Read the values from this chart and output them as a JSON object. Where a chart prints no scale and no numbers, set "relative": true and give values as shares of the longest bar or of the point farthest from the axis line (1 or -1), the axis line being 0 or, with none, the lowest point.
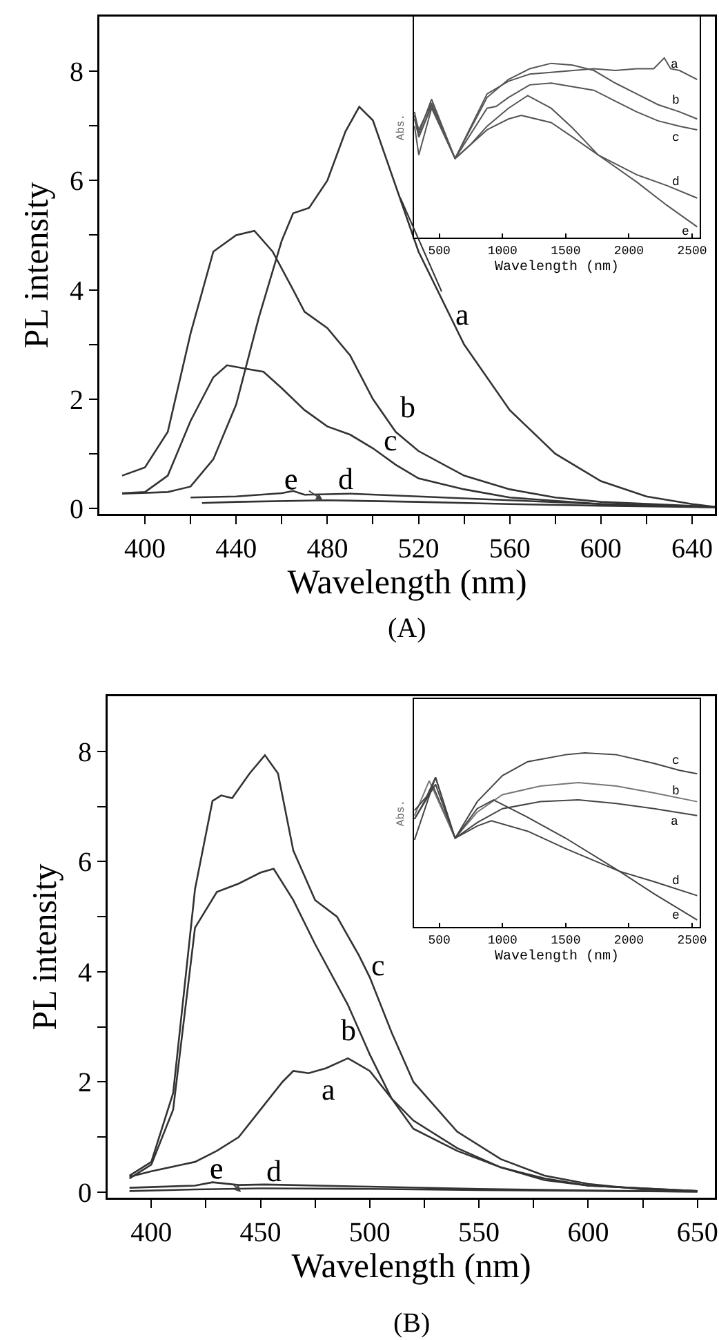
{
  "chart_data": [
    {
      "type": "line",
      "xlabel": "Wavelength (nm)",
      "ylabel": "PL intensity",
      "annotations": [
        "(A)"
      ],
      "xlim": [
        380,
        650
      ],
      "ylim": [
        -0.1,
        9
      ],
      "xticks": [
        400,
        {
          "value": 420,
          "label": null
        },
        440,
        {
          "value": 460,
          "label": null
        },
        480,
        {
          "value": 500,
          "label": null
        },
        520,
        {
          "value": 540,
          "label": null
        },
        560,
        {
          "value": 580,
          "label": null
        },
        600,
        {
          "value": 620,
          "label": null
        },
        640
      ],
      "yticks": [
        0,
        {
          "value": 1,
          "label": null
        },
        2,
        {
          "value": 3,
          "label": null
        },
        4,
        {
          "value": 5,
          "label": null
        },
        6,
        {
          "value": 7,
          "label": null
        },
        8
      ],
      "grid": false,
      "legend": false,
      "marker": "none",
      "line_style": "solid",
      "series": [
        {
          "name": "a",
          "color": "#333333",
          "x": [
            390,
            410,
            420,
            430,
            440,
            450,
            460,
            465,
            472,
            480,
            488,
            494,
            500,
            510,
            520,
            540,
            560,
            580,
            600,
            620,
            640,
            650
          ],
          "values": [
            0.27,
            0.3,
            0.4,
            0.9,
            1.9,
            3.5,
            4.9,
            5.4,
            5.5,
            6.0,
            6.9,
            7.35,
            7.1,
            5.9,
            4.7,
            3.0,
            1.8,
            1.0,
            0.5,
            0.22,
            0.08,
            0.03
          ]
        },
        {
          "name": "b",
          "color": "#333333",
          "x": [
            390,
            400,
            410,
            420,
            430,
            440,
            448,
            456,
            465,
            470,
            480,
            490,
            500,
            510,
            520,
            540,
            560,
            580,
            600,
            650
          ],
          "values": [
            0.6,
            0.75,
            1.4,
            3.2,
            4.7,
            5.0,
            5.08,
            4.7,
            4.0,
            3.6,
            3.3,
            2.8,
            2.0,
            1.4,
            1.05,
            0.6,
            0.35,
            0.2,
            0.12,
            0.03
          ]
        },
        {
          "name": "c",
          "color": "#333333",
          "x": [
            390,
            400,
            410,
            420,
            430,
            436,
            445,
            452,
            460,
            470,
            480,
            490,
            500,
            510,
            520,
            540,
            560,
            600,
            650
          ],
          "values": [
            0.28,
            0.3,
            0.6,
            1.6,
            2.4,
            2.62,
            2.55,
            2.5,
            2.2,
            1.8,
            1.5,
            1.35,
            1.1,
            0.8,
            0.55,
            0.35,
            0.2,
            0.08,
            0.02
          ]
        },
        {
          "name": "d",
          "color": "#333333",
          "x": [
            420,
            440,
            460,
            465,
            470,
            490,
            520,
            560,
            600,
            650
          ],
          "values": [
            0.2,
            0.22,
            0.28,
            0.32,
            0.25,
            0.27,
            0.22,
            0.15,
            0.08,
            0.03
          ]
        },
        {
          "name": "e",
          "color": "#333333",
          "x": [
            425,
            440,
            480,
            520,
            560,
            600,
            650
          ],
          "values": [
            0.1,
            0.12,
            0.15,
            0.12,
            0.08,
            0.05,
            0.02
          ]
        }
      ]
    },
    {
      "type": "line",
      "xlabel": "Wavelength (nm)",
      "ylabel": "Abs.",
      "relative": true,
      "xlim": [
        300,
        2560
      ],
      "xticks": [
        500,
        1000,
        1500,
        2000,
        2500
      ],
      "grid": false,
      "legend": false,
      "marker": "none",
      "line_style": "solid",
      "series": [
        {
          "name": "a",
          "color": "#555555",
          "x": [
            304,
            338,
            439,
            625,
            878,
            1047,
            1216,
            1385,
            1723,
            1892,
            2061,
            2196,
            2280,
            2330,
            2400,
            2540
          ],
          "values": [
            0.7,
            0.58,
            0.77,
            0.44,
            0.8,
            0.87,
            0.91,
            0.92,
            0.94,
            0.93,
            0.94,
            0.94,
            1.0,
            0.94,
            0.93,
            0.88
          ]
        },
        {
          "name": "b",
          "color": "#555555",
          "x": [
            304,
            338,
            439,
            625,
            878,
            1047,
            1216,
            1385,
            1554,
            1723,
            1892,
            2061,
            2230,
            2400,
            2540
          ],
          "values": [
            0.68,
            0.6,
            0.75,
            0.44,
            0.78,
            0.88,
            0.94,
            0.97,
            0.96,
            0.93,
            0.86,
            0.8,
            0.74,
            0.7,
            0.66
          ]
        },
        {
          "name": "c",
          "color": "#555555",
          "x": [
            304,
            338,
            439,
            625,
            878,
            950,
            1047,
            1216,
            1385,
            1554,
            1723,
            1892,
            2061,
            2230,
            2400,
            2540
          ],
          "values": [
            0.66,
            0.56,
            0.74,
            0.44,
            0.72,
            0.73,
            0.78,
            0.85,
            0.86,
            0.84,
            0.82,
            0.76,
            0.7,
            0.65,
            0.62,
            0.6
          ]
        },
        {
          "name": "d",
          "color": "#555555",
          "x": [
            304,
            338,
            439,
            625,
            878,
            1047,
            1149,
            1385,
            1554,
            1757,
            2061,
            2300,
            2540
          ],
          "values": [
            0.62,
            0.46,
            0.72,
            0.44,
            0.6,
            0.66,
            0.68,
            0.64,
            0.56,
            0.46,
            0.35,
            0.29,
            0.22
          ]
        },
        {
          "name": "e",
          "color": "#555555",
          "x": [
            304,
            338,
            439,
            625,
            750,
            878,
            1047,
            1199,
            1385,
            1554,
            1757,
            2061,
            2300,
            2540
          ],
          "values": [
            0.68,
            0.56,
            0.73,
            0.44,
            0.52,
            0.62,
            0.72,
            0.79,
            0.72,
            0.61,
            0.46,
            0.31,
            0.18,
            0.06
          ]
        }
      ]
    },
    {
      "type": "line",
      "xlabel": "Wavelength (nm)",
      "ylabel": "PL intensity",
      "annotations": [
        "(B)"
      ],
      "xlim": [
        380,
        658
      ],
      "ylim": [
        -0.1,
        9
      ],
      "xticks": [
        400,
        {
          "value": 425,
          "label": null
        },
        450,
        {
          "value": 475,
          "label": null
        },
        500,
        {
          "value": 525,
          "label": null
        },
        550,
        {
          "value": 575,
          "label": null
        },
        600,
        {
          "value": 625,
          "label": null
        },
        650
      ],
      "yticks": [
        0,
        {
          "value": 1,
          "label": null
        },
        2,
        {
          "value": 3,
          "label": null
        },
        4,
        {
          "value": 5,
          "label": null
        },
        6,
        {
          "value": 7,
          "label": null
        },
        8
      ],
      "grid": false,
      "legend": false,
      "marker": "none",
      "line_style": "solid",
      "series": [
        {
          "name": "a",
          "color": "#333333",
          "x": [
            390,
            400,
            420,
            430,
            440,
            450,
            460,
            465,
            472,
            480,
            490,
            500,
            510,
            520,
            540,
            560,
            580,
            600,
            650
          ],
          "values": [
            0.28,
            0.38,
            0.55,
            0.75,
            1.0,
            1.5,
            2.0,
            2.2,
            2.16,
            2.25,
            2.43,
            2.2,
            1.7,
            1.3,
            0.8,
            0.45,
            0.22,
            0.12,
            0.02
          ]
        },
        {
          "name": "b",
          "color": "#333333",
          "x": [
            390,
            400,
            410,
            420,
            430,
            440,
            450,
            456,
            465,
            475,
            490,
            500,
            510,
            520,
            540,
            560,
            580,
            600,
            650
          ],
          "values": [
            0.25,
            0.5,
            1.5,
            4.8,
            5.45,
            5.6,
            5.8,
            5.87,
            5.3,
            4.5,
            3.4,
            2.5,
            1.7,
            1.15,
            0.75,
            0.45,
            0.25,
            0.12,
            0.02
          ]
        },
        {
          "name": "c",
          "color": "#333333",
          "x": [
            390,
            400,
            410,
            420,
            428,
            432,
            437,
            445,
            452,
            458,
            465,
            475,
            485,
            495,
            500,
            510,
            520,
            540,
            560,
            580,
            600,
            625,
            650
          ],
          "values": [
            0.3,
            0.55,
            1.8,
            5.5,
            7.1,
            7.2,
            7.15,
            7.6,
            7.93,
            7.6,
            6.2,
            5.3,
            5.0,
            4.3,
            3.9,
            2.9,
            2.0,
            1.1,
            0.6,
            0.3,
            0.15,
            0.05,
            0.02
          ]
        },
        {
          "name": "d",
          "color": "#333333",
          "x": [
            390,
            420,
            428,
            440,
            452,
            500,
            550,
            600,
            650
          ],
          "values": [
            0.08,
            0.12,
            0.18,
            0.13,
            0.14,
            0.1,
            0.06,
            0.03,
            0.01
          ]
        },
        {
          "name": "e",
          "color": "#333333",
          "x": [
            390,
            420,
            450,
            500,
            550,
            650
          ],
          "values": [
            0.02,
            0.05,
            0.07,
            0.06,
            0.04,
            0.01
          ]
        }
      ]
    },
    {
      "type": "line",
      "xlabel": "Wavelength (nm)",
      "ylabel": "Abs.",
      "relative": true,
      "xlim": [
        300,
        2560
      ],
      "xticks": [
        500,
        1000,
        1500,
        2000,
        2500
      ],
      "grid": false,
      "legend": false,
      "marker": "none",
      "line_style": "solid",
      "series": [
        {
          "name": "a",
          "color": "#444444",
          "x": [
            304,
            450,
            625,
            800,
            1000,
            1300,
            1600,
            1900,
            2200,
            2540
          ],
          "values": [
            0.62,
            0.81,
            0.51,
            0.6,
            0.68,
            0.72,
            0.73,
            0.71,
            0.68,
            0.64
          ]
        },
        {
          "name": "b",
          "color": "#777777",
          "x": [
            304,
            420,
            625,
            800,
            1000,
            1300,
            1600,
            1900,
            2200,
            2540
          ],
          "values": [
            0.64,
            0.84,
            0.51,
            0.66,
            0.76,
            0.81,
            0.83,
            0.81,
            0.77,
            0.72
          ]
        },
        {
          "name": "c",
          "color": "#444444",
          "x": [
            304,
            400,
            470,
            625,
            800,
            1000,
            1200,
            1500,
            1650,
            1900,
            2200,
            2400,
            2540
          ],
          "values": [
            0.67,
            0.75,
            0.86,
            0.51,
            0.72,
            0.87,
            0.95,
            0.99,
            1.0,
            0.99,
            0.94,
            0.9,
            0.88
          ]
        },
        {
          "name": "d",
          "color": "#444444",
          "x": [
            304,
            470,
            625,
            800,
            912,
            1200,
            1500,
            1925,
            2200,
            2540
          ],
          "values": [
            0.62,
            0.82,
            0.51,
            0.58,
            0.61,
            0.55,
            0.45,
            0.32,
            0.26,
            0.18
          ]
        },
        {
          "name": "e",
          "color": "#444444",
          "x": [
            304,
            470,
            625,
            800,
            929,
            1200,
            1500,
            1925,
            2200,
            2540
          ],
          "values": [
            0.5,
            0.86,
            0.51,
            0.68,
            0.73,
            0.63,
            0.51,
            0.32,
            0.19,
            0.04
          ]
        }
      ]
    }
  ]
}
